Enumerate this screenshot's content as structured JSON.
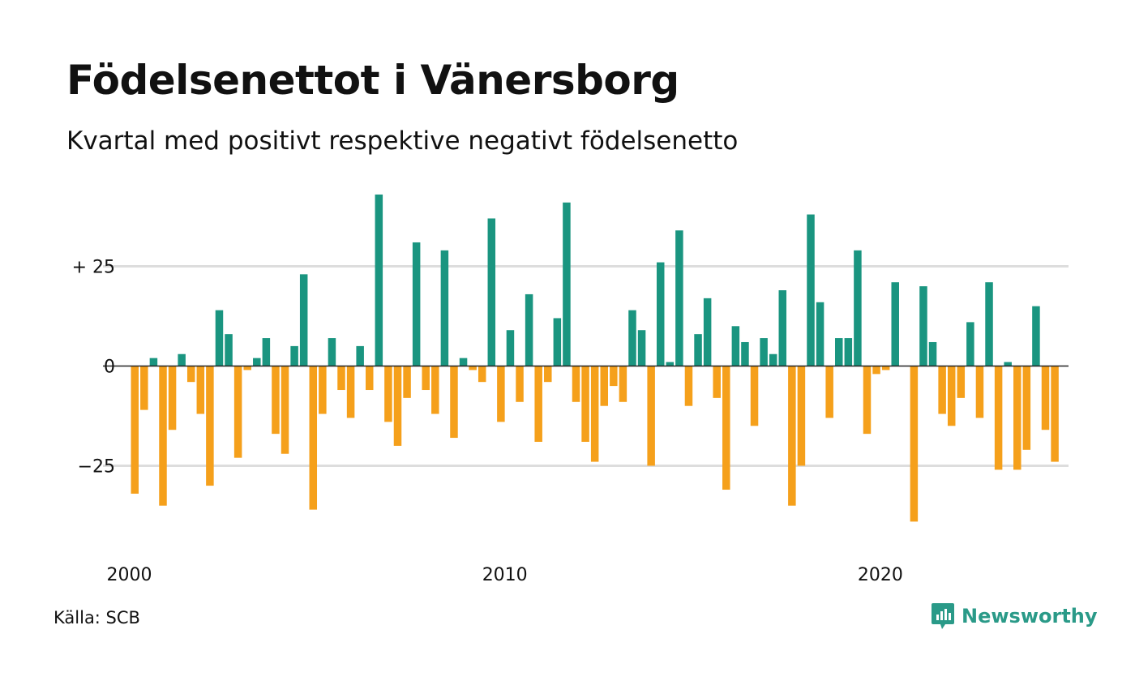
{
  "title": "Födelsenettot i Vänersborg",
  "subtitle": "Kvartal med positivt respektive negativt födelsenetto",
  "source": "Källa: SCB",
  "brand": {
    "name": "Newsworthy",
    "icon": "newsworthy-logo-icon"
  },
  "colors": {
    "positive": "#1a9580",
    "negative": "#f5a01b",
    "grid": "#dddddd",
    "zero_line": "#222222",
    "brand": "#2a9a88",
    "text": "#111111"
  },
  "chart_data": {
    "type": "bar",
    "title": "Födelsenettot i Vänersborg",
    "subtitle": "Kvartal med positivt respektive negativt födelsenetto",
    "x_tick_labels": [
      "2000",
      "2010",
      "2020"
    ],
    "y_tick_labels": [
      "+ 25",
      "0",
      "−25"
    ],
    "y_ticks": [
      25,
      0,
      -25
    ],
    "ylim": [
      -45,
      45
    ],
    "grid": true,
    "values": [
      -32,
      -11,
      2,
      -35,
      -16,
      3,
      -4,
      -12,
      -30,
      14,
      8,
      -23,
      -1,
      2,
      7,
      -17,
      -22,
      5,
      23,
      -36,
      -12,
      7,
      -6,
      -13,
      5,
      -6,
      43,
      -14,
      -20,
      -8,
      31,
      -6,
      -12,
      29,
      -18,
      2,
      -1,
      -4,
      37,
      -14,
      9,
      -9,
      18,
      -19,
      -4,
      12,
      41,
      -9,
      -19,
      -24,
      -10,
      -5,
      -9,
      14,
      9,
      -25,
      26,
      1,
      34,
      -10,
      8,
      17,
      -8,
      -31,
      10,
      6,
      -15,
      7,
      3,
      19,
      -35,
      -25,
      38,
      16,
      -13,
      7,
      7,
      29,
      -17,
      -2,
      -1,
      21,
      0,
      -39,
      20,
      6,
      -12,
      -15,
      -8,
      11,
      -13,
      21,
      -26,
      1,
      -26,
      -21,
      15,
      -16,
      -24
    ]
  }
}
